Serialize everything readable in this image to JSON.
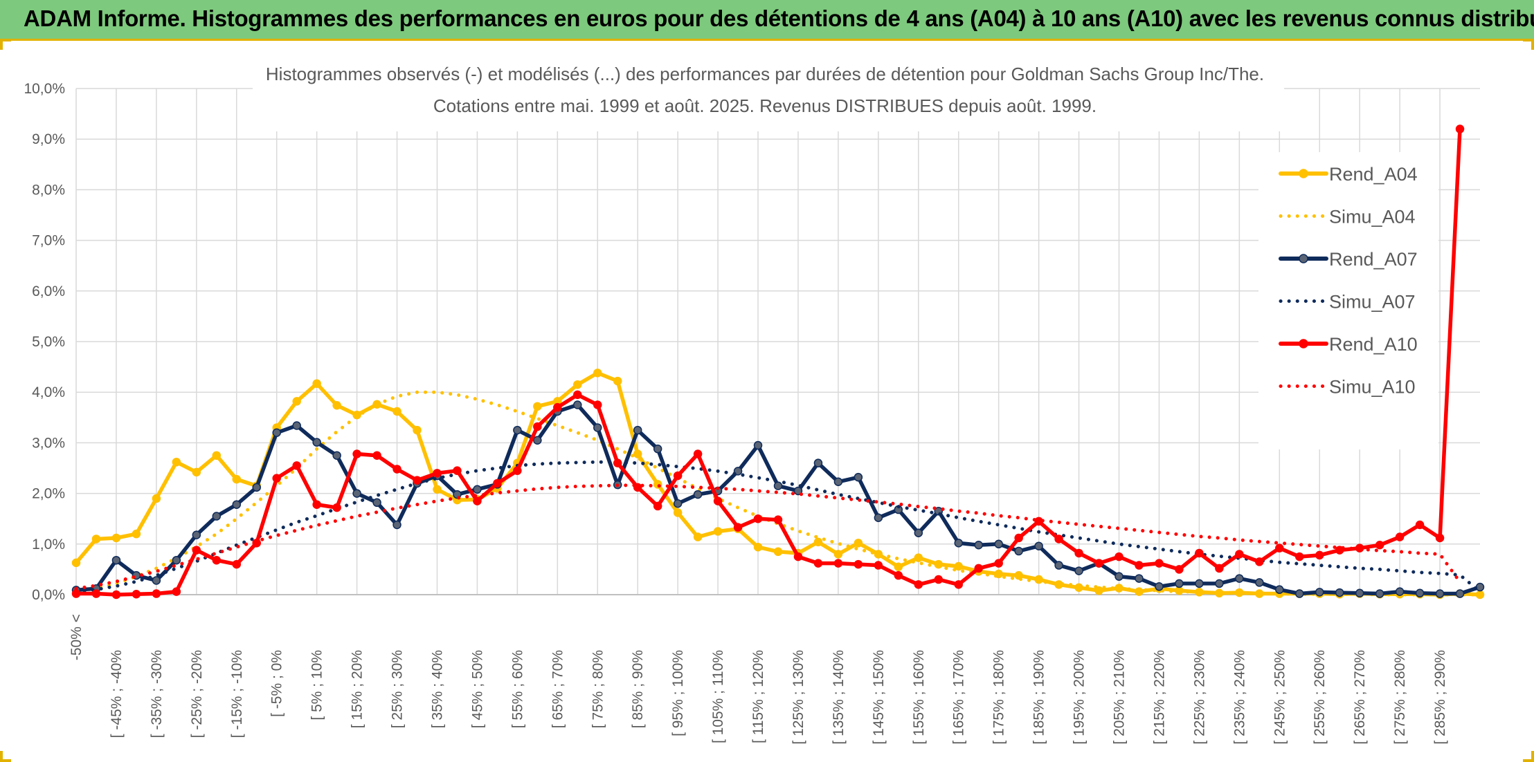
{
  "banner": {
    "title": "ADAM Informe. Histogrammes des performances en euros pour des détentions de 4 ans (A04) à 10 ans (A10) avec les revenus connus distribués"
  },
  "chart_data": {
    "type": "line",
    "title_line1": "Histogrammes observés (-) et modélisés (...) des performances par durées de détention pour Goldman Sachs Group Inc/The.",
    "title_line2": "Cotations entre mai. 1999 et août. 2025. Revenus DISTRIBUES depuis août. 1999.",
    "ylim": [
      0,
      10
    ],
    "y_ticks": [
      "0,0%",
      "1,0%",
      "2,0%",
      "3,0%",
      "4,0%",
      "5,0%",
      "6,0%",
      "7,0%",
      "8,0%",
      "9,0%",
      "10,0%"
    ],
    "grid": true,
    "legend_position": "right",
    "x_labels": [
      "-50% <",
      "[ -45% ; -40%",
      "[ -35% ; -30%",
      "[ -25% ; -20%",
      "[ -15% ; -10%",
      "[ -5% ; 0%",
      "[ 5% ; 10%",
      "[ 15% ; 20%",
      "[ 25% ; 30%",
      "[ 35% ; 40%",
      "[ 45% ; 50%",
      "[ 55% ; 60%",
      "[ 65% ; 70%",
      "[ 75% ; 80%",
      "[ 85% ; 90%",
      "[ 95% ; 100%",
      "[ 105% ; 110%",
      "[ 115% ; 120%",
      "[ 125% ; 130%",
      "[ 135% ; 140%",
      "[ 145% ; 150%",
      "[ 155% ; 160%",
      "[ 165% ; 170%",
      "[ 175% ; 180%",
      "[ 185% ; 190%",
      "[ 195% ; 200%",
      "[ 205% ; 210%",
      "[ 215% ; 220%",
      "[ 225% ; 230%",
      "[ 235% ; 240%",
      "[ 245% ; 250%",
      "[ 255% ; 260%",
      "[ 265% ; 270%",
      "[ 275% ; 280%",
      "[ 285% ; 290%"
    ],
    "series": [
      {
        "name": "Rend_A04",
        "color": "#ffc000",
        "style": "solid",
        "values": [
          0.63,
          1.1,
          1.12,
          1.2,
          1.9,
          2.62,
          2.42,
          2.75,
          2.28,
          2.15,
          3.3,
          3.82,
          4.17,
          3.74,
          3.55,
          3.76,
          3.62,
          3.25,
          2.08,
          1.87,
          1.88,
          2.1,
          2.6,
          3.72,
          3.82,
          4.15,
          4.38,
          4.22,
          2.78,
          2.18,
          1.62,
          1.14,
          1.25,
          1.3,
          0.94,
          0.85,
          0.82,
          1.04,
          0.8,
          1.02,
          0.8,
          0.55,
          0.73,
          0.6,
          0.56,
          0.46,
          0.41,
          0.38,
          0.3,
          0.2,
          0.14,
          0.08,
          0.13,
          0.06,
          0.12,
          0.08,
          0.05,
          0.03,
          0.04,
          0.02,
          0.02,
          0.02,
          0.02,
          0.01,
          0.02,
          0.01,
          0.01,
          0.01,
          0.0,
          0.02,
          0.0
        ]
      },
      {
        "name": "Simu_A04",
        "color": "#ffc000",
        "style": "dotted",
        "values": [
          0.05,
          0.12,
          0.22,
          0.36,
          0.52,
          0.72,
          0.95,
          1.2,
          1.5,
          1.82,
          2.15,
          2.5,
          2.88,
          3.22,
          3.52,
          3.76,
          3.92,
          4.0,
          4.0,
          3.95,
          3.86,
          3.75,
          3.62,
          3.48,
          3.34,
          3.2,
          3.05,
          2.88,
          2.7,
          2.5,
          2.3,
          2.1,
          1.9,
          1.72,
          1.55,
          1.4,
          1.26,
          1.13,
          1.01,
          0.9,
          0.8,
          0.71,
          0.63,
          0.55,
          0.48,
          0.42,
          0.36,
          0.31,
          0.26,
          0.22,
          0.18,
          0.15,
          0.12,
          0.1,
          0.08,
          0.06,
          0.05,
          0.04,
          0.03,
          0.02,
          0.02,
          0.01,
          0.01,
          0.01,
          0.01,
          0.0,
          0.0,
          0.0,
          0.0,
          0.0,
          0.0
        ]
      },
      {
        "name": "Rend_A07",
        "color": "#0f2b5b",
        "style": "solid",
        "values": [
          0.09,
          0.12,
          0.68,
          0.38,
          0.28,
          0.68,
          1.18,
          1.55,
          1.78,
          2.12,
          3.2,
          3.34,
          3.01,
          2.75,
          2.0,
          1.82,
          1.38,
          2.2,
          2.35,
          1.98,
          2.08,
          2.18,
          3.25,
          3.05,
          3.62,
          3.75,
          3.3,
          2.17,
          3.25,
          2.88,
          1.8,
          1.98,
          2.05,
          2.44,
          2.95,
          2.15,
          2.05,
          2.6,
          2.23,
          2.32,
          1.52,
          1.68,
          1.22,
          1.65,
          1.02,
          0.98,
          1.0,
          0.86,
          0.96,
          0.58,
          0.47,
          0.62,
          0.36,
          0.32,
          0.16,
          0.22,
          0.22,
          0.22,
          0.32,
          0.24,
          0.1,
          0.02,
          0.05,
          0.04,
          0.03,
          0.02,
          0.06,
          0.03,
          0.02,
          0.02,
          0.15
        ]
      },
      {
        "name": "Simu_A07",
        "color": "#0f2b5b",
        "style": "dotted",
        "values": [
          0.06,
          0.1,
          0.17,
          0.26,
          0.38,
          0.52,
          0.66,
          0.82,
          0.98,
          1.13,
          1.28,
          1.43,
          1.56,
          1.7,
          1.83,
          1.96,
          2.08,
          2.2,
          2.3,
          2.38,
          2.45,
          2.5,
          2.55,
          2.58,
          2.6,
          2.61,
          2.62,
          2.62,
          2.6,
          2.57,
          2.53,
          2.49,
          2.44,
          2.38,
          2.31,
          2.24,
          2.16,
          2.07,
          1.98,
          1.9,
          1.82,
          1.74,
          1.67,
          1.6,
          1.52,
          1.45,
          1.38,
          1.31,
          1.24,
          1.18,
          1.12,
          1.06,
          1.0,
          0.95,
          0.9,
          0.85,
          0.8,
          0.76,
          0.72,
          0.68,
          0.64,
          0.61,
          0.58,
          0.55,
          0.52,
          0.5,
          0.47,
          0.44,
          0.42,
          0.39,
          0.06
        ]
      },
      {
        "name": "Rend_A10",
        "color": "#ff0000",
        "style": "solid",
        "values": [
          0.02,
          0.02,
          0.0,
          0.01,
          0.02,
          0.06,
          0.88,
          0.68,
          0.6,
          1.02,
          2.3,
          2.55,
          1.78,
          1.72,
          2.78,
          2.75,
          2.48,
          2.26,
          2.4,
          2.45,
          1.85,
          2.2,
          2.45,
          3.32,
          3.7,
          3.95,
          3.75,
          2.6,
          2.12,
          1.75,
          2.35,
          2.78,
          1.85,
          1.33,
          1.5,
          1.48,
          0.75,
          0.62,
          0.62,
          0.6,
          0.58,
          0.38,
          0.2,
          0.3,
          0.2,
          0.52,
          0.62,
          1.12,
          1.45,
          1.1,
          0.82,
          0.62,
          0.75,
          0.58,
          0.62,
          0.5,
          0.82,
          0.52,
          0.8,
          0.65,
          0.92,
          0.75,
          0.78,
          0.88,
          0.92,
          0.98,
          1.14,
          1.38,
          1.12,
          9.2
        ]
      },
      {
        "name": "Simu_A10",
        "color": "#ff0000",
        "style": "dotted",
        "values": [
          0.12,
          0.18,
          0.26,
          0.36,
          0.46,
          0.58,
          0.7,
          0.82,
          0.94,
          1.06,
          1.17,
          1.27,
          1.37,
          1.46,
          1.55,
          1.63,
          1.71,
          1.78,
          1.85,
          1.91,
          1.96,
          2.01,
          2.05,
          2.09,
          2.12,
          2.14,
          2.15,
          2.16,
          2.16,
          2.15,
          2.14,
          2.12,
          2.1,
          2.08,
          2.05,
          2.02,
          1.99,
          1.95,
          1.91,
          1.87,
          1.83,
          1.79,
          1.74,
          1.7,
          1.65,
          1.61,
          1.56,
          1.52,
          1.47,
          1.43,
          1.39,
          1.35,
          1.31,
          1.27,
          1.23,
          1.19,
          1.15,
          1.12,
          1.08,
          1.05,
          1.02,
          0.99,
          0.96,
          0.93,
          0.9,
          0.87,
          0.85,
          0.82,
          0.8,
          0.25
        ]
      }
    ]
  }
}
